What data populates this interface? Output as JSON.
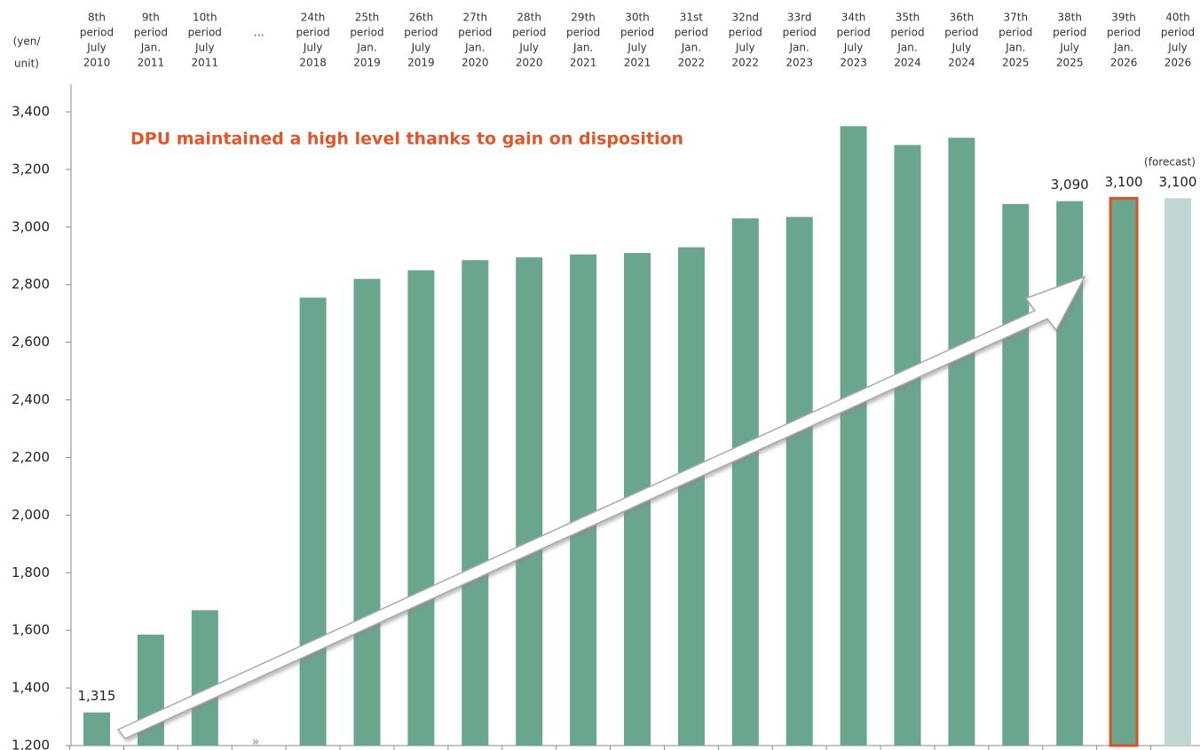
{
  "chart_data": {
    "type": "bar",
    "y_axis_label": [
      "(yen/",
      "unit)"
    ],
    "annotation": "DPU maintained a high level thanks to gain on disposition",
    "forecast_note": "(forecast)",
    "categories": [
      [
        "8th",
        "period",
        "July",
        "2010"
      ],
      [
        "9th",
        "period",
        "Jan.",
        "2011"
      ],
      [
        "10th",
        "period",
        "July",
        "2011"
      ],
      [
        "…"
      ],
      [
        "24th",
        "period",
        "July",
        "2018"
      ],
      [
        "25th",
        "period",
        "Jan.",
        "2019"
      ],
      [
        "26th",
        "period",
        "July",
        "2019"
      ],
      [
        "27th",
        "period",
        "Jan.",
        "2020"
      ],
      [
        "28th",
        "period",
        "July",
        "2020"
      ],
      [
        "29th",
        "period",
        "Jan.",
        "2021"
      ],
      [
        "30th",
        "period",
        "July",
        "2021"
      ],
      [
        "31st",
        "period",
        "Jan.",
        "2022"
      ],
      [
        "32nd",
        "period",
        "July",
        "2022"
      ],
      [
        "33rd",
        "period",
        "Jan.",
        "2023"
      ],
      [
        "34th",
        "period",
        "July",
        "2023"
      ],
      [
        "35th",
        "period",
        "Jan.",
        "2024"
      ],
      [
        "36th",
        "period",
        "July",
        "2024"
      ],
      [
        "37th",
        "period",
        "Jan.",
        "2025"
      ],
      [
        "38th",
        "period",
        "July",
        "2025"
      ],
      [
        "39th",
        "period",
        "Jan.",
        "2026"
      ],
      [
        "40th",
        "period",
        "July",
        "2026"
      ]
    ],
    "values": [
      1315,
      1585,
      1670,
      null,
      2755,
      2820,
      2850,
      2885,
      2895,
      2905,
      2910,
      2930,
      3030,
      3035,
      3350,
      3285,
      3310,
      3080,
      3090,
      3100,
      3100
    ],
    "value_labels": [
      "1,315",
      null,
      null,
      null,
      null,
      null,
      null,
      null,
      null,
      null,
      null,
      null,
      null,
      null,
      null,
      null,
      null,
      null,
      "3,090",
      "3,100",
      "3,100"
    ],
    "colors": [
      "#6aa68e",
      "#6aa68e",
      "#6aa68e",
      null,
      "#6aa68e",
      "#6aa68e",
      "#6aa68e",
      "#6aa68e",
      "#6aa68e",
      "#6aa68e",
      "#6aa68e",
      "#6aa68e",
      "#6aa68e",
      "#6aa68e",
      "#6aa68e",
      "#6aa68e",
      "#6aa68e",
      "#6aa68e",
      "#6aa68e",
      "#6aa68e",
      "#bfd6d3"
    ],
    "edge_colors": [
      null,
      null,
      null,
      null,
      null,
      null,
      null,
      null,
      null,
      null,
      null,
      null,
      null,
      null,
      null,
      null,
      null,
      null,
      null,
      "#d9532a",
      null
    ],
    "ylim": [
      1200,
      3400
    ],
    "yticks": [
      {
        "value": 1200,
        "label": "1,200"
      },
      {
        "value": 1400,
        "label": "1,400"
      },
      {
        "value": 1600,
        "label": "1,600"
      },
      {
        "value": 1800,
        "label": "1,800"
      },
      {
        "value": 2000,
        "label": "2,000"
      },
      {
        "value": 2200,
        "label": "2,200"
      },
      {
        "value": 2400,
        "label": "2,400"
      },
      {
        "value": 2600,
        "label": "2,600"
      },
      {
        "value": 2800,
        "label": "2,800"
      },
      {
        "value": 3000,
        "label": "3,000"
      },
      {
        "value": 3200,
        "label": "3,200"
      },
      {
        "value": 3400,
        "label": "3,400"
      }
    ],
    "grid": false
  }
}
